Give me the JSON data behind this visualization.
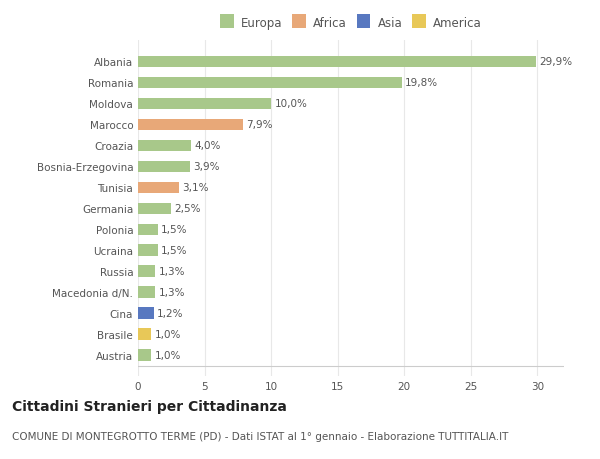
{
  "categories": [
    "Albania",
    "Romania",
    "Moldova",
    "Marocco",
    "Croazia",
    "Bosnia-Erzegovina",
    "Tunisia",
    "Germania",
    "Polonia",
    "Ucraina",
    "Russia",
    "Macedonia d/N.",
    "Cina",
    "Brasile",
    "Austria"
  ],
  "values": [
    29.9,
    19.8,
    10.0,
    7.9,
    4.0,
    3.9,
    3.1,
    2.5,
    1.5,
    1.5,
    1.3,
    1.3,
    1.2,
    1.0,
    1.0
  ],
  "labels": [
    "29,9%",
    "19,8%",
    "10,0%",
    "7,9%",
    "4,0%",
    "3,9%",
    "3,1%",
    "2,5%",
    "1,5%",
    "1,5%",
    "1,3%",
    "1,3%",
    "1,2%",
    "1,0%",
    "1,0%"
  ],
  "continents": [
    "Europa",
    "Europa",
    "Europa",
    "Africa",
    "Europa",
    "Europa",
    "Africa",
    "Europa",
    "Europa",
    "Europa",
    "Europa",
    "Europa",
    "Asia",
    "America",
    "Europa"
  ],
  "continent_colors": {
    "Europa": "#a8c88a",
    "Africa": "#e8a878",
    "Asia": "#5878c0",
    "America": "#e8c858"
  },
  "legend_items": [
    "Europa",
    "Africa",
    "Asia",
    "America"
  ],
  "background_color": "#ffffff",
  "plot_bg_color": "#ffffff",
  "grid_color": "#e8e8e8",
  "xlim": [
    0,
    32
  ],
  "xticks": [
    0,
    5,
    10,
    15,
    20,
    25,
    30
  ],
  "title": "Cittadini Stranieri per Cittadinanza",
  "subtitle": "COMUNE DI MONTEGROTTO TERME (PD) - Dati ISTAT al 1° gennaio - Elaborazione TUTTITALIA.IT",
  "title_fontsize": 10,
  "subtitle_fontsize": 7.5,
  "label_fontsize": 7.5,
  "tick_fontsize": 7.5,
  "legend_fontsize": 8.5
}
